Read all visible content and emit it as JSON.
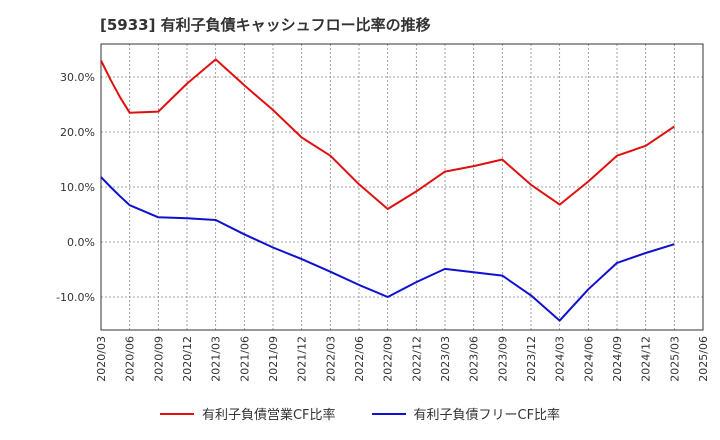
{
  "title": "[5933]  有利子負債キャッシュフロー比率の推移",
  "colors": {
    "series1": "#e01010",
    "series2": "#1010d0",
    "grid": "#888888",
    "axis": "#333333"
  },
  "chart_data": {
    "type": "line",
    "title": "[5933]  有利子負債キャッシュフロー比率の推移",
    "xlabel": "",
    "ylabel": "",
    "x_ticks": [
      "2020/03",
      "2020/06",
      "2020/09",
      "2020/12",
      "2021/03",
      "2021/06",
      "2021/09",
      "2021/12",
      "2022/03",
      "2022/06",
      "2022/09",
      "2022/12",
      "2023/03",
      "2023/06",
      "2023/09",
      "2023/12",
      "2024/03",
      "2024/06",
      "2024/09",
      "2024/12",
      "2025/03",
      "2025/06"
    ],
    "y_ticks": [
      -10,
      0,
      10,
      20,
      30
    ],
    "y_tick_labels": [
      "-10.0%",
      "0.0%",
      "10.0%",
      "20.0%",
      "30.0%"
    ],
    "ylim": [
      -16,
      36
    ],
    "grid": true,
    "legend_position": "bottom",
    "series": [
      {
        "name": "有利子負債営業CF比率",
        "color": "#e01010",
        "points": [
          [
            "2020/03",
            33.0
          ],
          [
            "2020/04",
            29.5
          ],
          [
            "2020/05",
            26.3
          ],
          [
            "2020/06",
            23.5
          ],
          [
            "2020/09",
            23.7
          ],
          [
            "2020/12",
            28.8
          ],
          [
            "2021/03",
            33.2
          ],
          [
            "2021/06",
            28.5
          ],
          [
            "2021/09",
            24.0
          ],
          [
            "2021/12",
            19.0
          ],
          [
            "2022/03",
            15.7
          ],
          [
            "2022/06",
            10.5
          ],
          [
            "2022/09",
            6.0
          ],
          [
            "2022/12",
            9.2
          ],
          [
            "2023/03",
            12.8
          ],
          [
            "2023/06",
            13.8
          ],
          [
            "2023/09",
            15.0
          ],
          [
            "2023/12",
            10.4
          ],
          [
            "2024/03",
            6.8
          ],
          [
            "2024/06",
            11.0
          ],
          [
            "2024/09",
            15.7
          ],
          [
            "2024/12",
            17.5
          ],
          [
            "2025/03",
            21.0
          ]
        ]
      },
      {
        "name": "有利子負債フリーCF比率",
        "color": "#1010d0",
        "points": [
          [
            "2020/03",
            11.8
          ],
          [
            "2020/04",
            10.0
          ],
          [
            "2020/05",
            8.3
          ],
          [
            "2020/06",
            6.7
          ],
          [
            "2020/09",
            4.5
          ],
          [
            "2020/12",
            4.3
          ],
          [
            "2021/03",
            4.0
          ],
          [
            "2021/06",
            1.4
          ],
          [
            "2021/09",
            -1.0
          ],
          [
            "2021/12",
            -3.1
          ],
          [
            "2022/03",
            -5.4
          ],
          [
            "2022/06",
            -7.8
          ],
          [
            "2022/09",
            -10.0
          ],
          [
            "2022/12",
            -7.3
          ],
          [
            "2023/03",
            -4.9
          ],
          [
            "2023/06",
            -5.5
          ],
          [
            "2023/09",
            -6.1
          ],
          [
            "2023/12",
            -9.7
          ],
          [
            "2024/03",
            -14.3
          ],
          [
            "2024/06",
            -8.6
          ],
          [
            "2024/09",
            -3.8
          ],
          [
            "2024/12",
            -2.0
          ],
          [
            "2025/03",
            -0.4
          ]
        ]
      }
    ]
  }
}
